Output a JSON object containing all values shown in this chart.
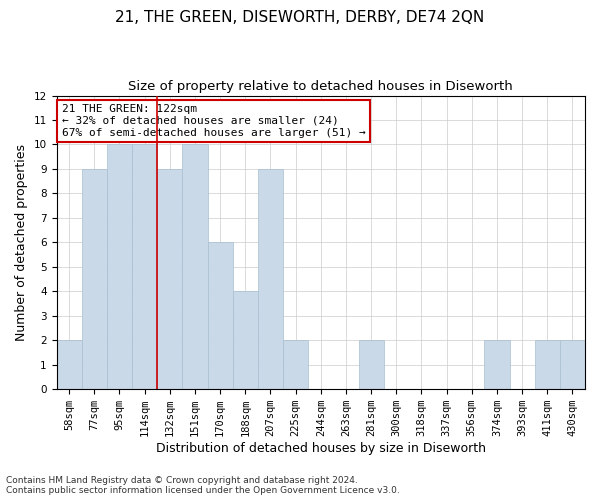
{
  "title": "21, THE GREEN, DISEWORTH, DERBY, DE74 2QN",
  "subtitle": "Size of property relative to detached houses in Diseworth",
  "xlabel": "Distribution of detached houses by size in Diseworth",
  "ylabel": "Number of detached properties",
  "categories": [
    "58sqm",
    "77sqm",
    "95sqm",
    "114sqm",
    "132sqm",
    "151sqm",
    "170sqm",
    "188sqm",
    "207sqm",
    "225sqm",
    "244sqm",
    "263sqm",
    "281sqm",
    "300sqm",
    "318sqm",
    "337sqm",
    "356sqm",
    "374sqm",
    "393sqm",
    "411sqm",
    "430sqm"
  ],
  "values": [
    2,
    9,
    10,
    10,
    9,
    10,
    6,
    4,
    9,
    2,
    0,
    0,
    2,
    0,
    0,
    0,
    0,
    2,
    0,
    2,
    2
  ],
  "bar_color": "#c9d9e8",
  "bar_edgecolor": "#a8bfd0",
  "ylim": [
    0,
    12
  ],
  "yticks": [
    0,
    1,
    2,
    3,
    4,
    5,
    6,
    7,
    8,
    9,
    10,
    11,
    12
  ],
  "property_label": "21 THE GREEN: 122sqm",
  "pct_smaller": 32,
  "num_smaller": 24,
  "pct_larger_semi": 67,
  "num_larger_semi": 51,
  "vline_x_index": 3.5,
  "footer_line1": "Contains HM Land Registry data © Crown copyright and database right 2024.",
  "footer_line2": "Contains public sector information licensed under the Open Government Licence v3.0.",
  "title_fontsize": 11,
  "subtitle_fontsize": 9.5,
  "ylabel_fontsize": 9,
  "xlabel_fontsize": 9,
  "tick_fontsize": 7.5,
  "footer_fontsize": 6.5,
  "grid_color": "#cccccc",
  "background_color": "#ffffff",
  "vline_color": "#cc0000",
  "box_edgecolor": "#cc0000",
  "box_facecolor": "#ffffff",
  "ann_fontsize": 8
}
